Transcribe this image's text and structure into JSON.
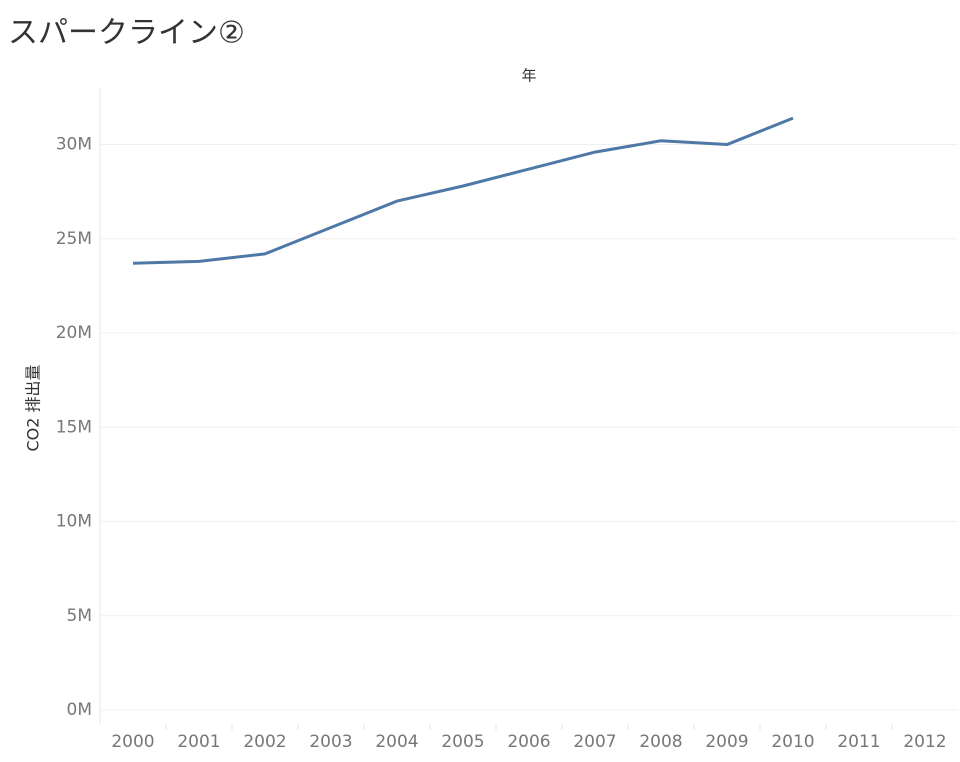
{
  "chart_data": {
    "type": "line",
    "title": "スパークライン②",
    "x_header": "年",
    "y_label": "CO2 排出量",
    "categories": [
      "2000",
      "2001",
      "2002",
      "2003",
      "2004",
      "2005",
      "2006",
      "2007",
      "2008",
      "2009",
      "2010",
      "2011",
      "2012"
    ],
    "series": [
      {
        "name": "CO2 排出量",
        "color": "#4e79a7",
        "values": [
          23700000,
          23800000,
          24200000,
          25600000,
          27000000,
          27800000,
          28700000,
          29600000,
          30200000,
          30000000,
          31400000,
          null,
          null
        ]
      }
    ],
    "ylim": [
      0,
      33000000
    ],
    "yticks": [
      {
        "value": 0,
        "label": "0M"
      },
      {
        "value": 5000000,
        "label": "5M"
      },
      {
        "value": 10000000,
        "label": "10M"
      },
      {
        "value": 15000000,
        "label": "15M"
      },
      {
        "value": 20000000,
        "label": "20M"
      },
      {
        "value": 25000000,
        "label": "25M"
      },
      {
        "value": 30000000,
        "label": "30M"
      }
    ],
    "grid": true
  }
}
